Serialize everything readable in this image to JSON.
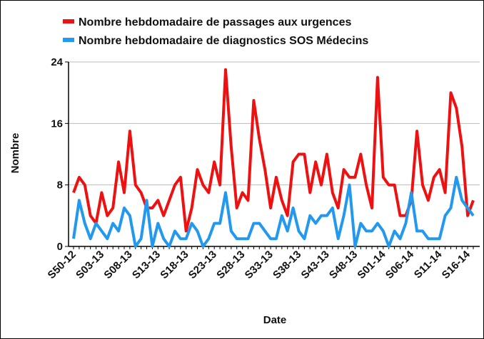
{
  "chart_data": {
    "type": "line",
    "x_label": "Date",
    "y_label": "Nombre",
    "categories": [
      "S50-12",
      null,
      null,
      null,
      null,
      "S03-13",
      null,
      null,
      null,
      null,
      "S08-13",
      null,
      null,
      null,
      null,
      "S13-13",
      null,
      null,
      null,
      null,
      "S18-13",
      null,
      null,
      null,
      null,
      "S23-13",
      null,
      null,
      null,
      null,
      "S28-13",
      null,
      null,
      null,
      null,
      "S33-13",
      null,
      null,
      null,
      null,
      "S38-13",
      null,
      null,
      null,
      null,
      "S43-13",
      null,
      null,
      null,
      null,
      "S48-13",
      null,
      null,
      null,
      null,
      "S01-14",
      null,
      null,
      null,
      null,
      "S06-14",
      null,
      null,
      null,
      null,
      "S11-14",
      null,
      null,
      null,
      null,
      "S16-14",
      null
    ],
    "series": [
      {
        "name": "Nombre hebdomadaire de passages aux urgences",
        "color": "#ee1111",
        "values": [
          7,
          9,
          8,
          4,
          3,
          7,
          4,
          5,
          11,
          7,
          15,
          8,
          7,
          5,
          5,
          6,
          4,
          6,
          8,
          9,
          2,
          5,
          10,
          8,
          7,
          11,
          8,
          23,
          13,
          5,
          7,
          6,
          19,
          14,
          10,
          5,
          9,
          6,
          4,
          11,
          12,
          12,
          7,
          11,
          8,
          12,
          7,
          5,
          10,
          9,
          9,
          12,
          8,
          5,
          22,
          9,
          8,
          8,
          4,
          4,
          6,
          15,
          8,
          6,
          9,
          10,
          7,
          20,
          18,
          13,
          4,
          6
        ]
      },
      {
        "name": "Nombre hebdomadaire de diagnostics SOS Médecins",
        "color": "#2299ee",
        "values": [
          1,
          6,
          3,
          1,
          3,
          2,
          1,
          3,
          2,
          5,
          4,
          0,
          1,
          6,
          0,
          3,
          1,
          0,
          2,
          1,
          1,
          3,
          2,
          0,
          1,
          3,
          3,
          7,
          2,
          1,
          1,
          1,
          3,
          3,
          2,
          1,
          1,
          4,
          2,
          5,
          2,
          1,
          4,
          3,
          4,
          4,
          5,
          1,
          4,
          8,
          0,
          3,
          2,
          2,
          3,
          2,
          0,
          2,
          1,
          3,
          7,
          2,
          2,
          1,
          1,
          1,
          4,
          5,
          9,
          6,
          5,
          4
        ]
      }
    ],
    "ylim": [
      0,
      24
    ],
    "yticks": [
      0,
      8,
      16,
      24
    ],
    "grid": true
  }
}
